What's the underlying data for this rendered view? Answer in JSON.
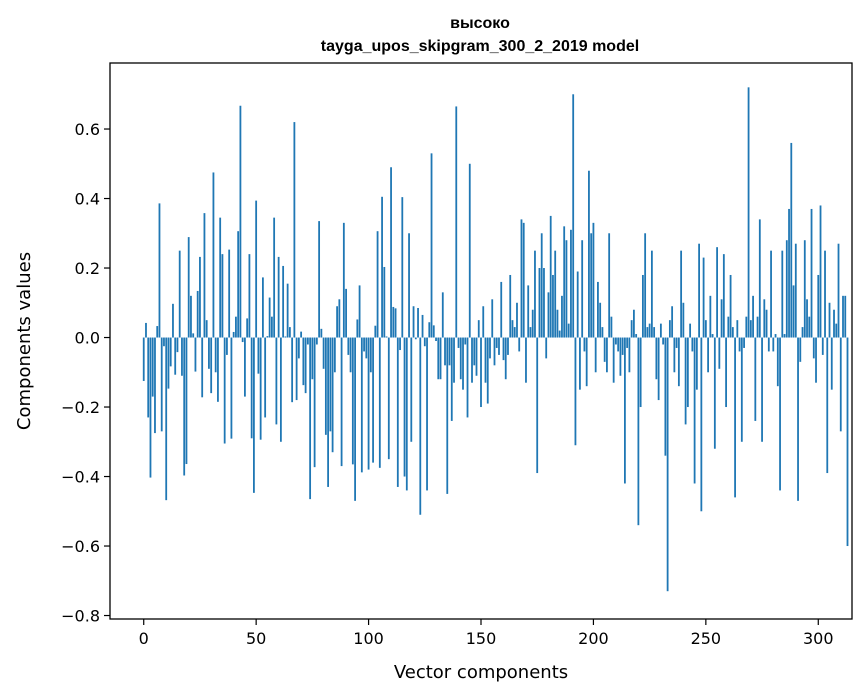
{
  "chart_data": {
    "type": "bar",
    "title_line1": "высоко",
    "title_line2": "tayga_upos_skipgram_300_2_2019 model",
    "xlabel": "Vector components",
    "ylabel": "Components values",
    "xlim": [
      -15,
      315
    ],
    "ylim": [
      -0.81,
      0.79
    ],
    "x_ticks": [
      0,
      50,
      100,
      150,
      200,
      250,
      300
    ],
    "x_tick_labels": [
      "0",
      "50",
      "100",
      "150",
      "200",
      "250",
      "300"
    ],
    "y_ticks": [
      -0.8,
      -0.6,
      -0.4,
      -0.2,
      0.0,
      0.2,
      0.4,
      0.6
    ],
    "y_tick_labels": [
      "−0.8",
      "−0.6",
      "−0.4",
      "−0.2",
      "0.0",
      "0.2",
      "0.4",
      "0.6"
    ],
    "bar_color": "#1f77b4",
    "values": [
      -0.125,
      0.042,
      -0.23,
      -0.403,
      -0.17,
      -0.275,
      0.033,
      0.386,
      -0.27,
      -0.025,
      -0.468,
      -0.147,
      -0.083,
      0.097,
      -0.107,
      -0.042,
      0.25,
      -0.11,
      -0.397,
      -0.364,
      0.289,
      0.12,
      0.012,
      -0.098,
      0.134,
      0.232,
      -0.172,
      0.358,
      0.05,
      -0.09,
      -0.16,
      0.475,
      -0.1,
      -0.185,
      0.345,
      0.24,
      -0.305,
      -0.05,
      0.253,
      -0.291,
      0.016,
      0.06,
      0.306,
      0.667,
      -0.013,
      -0.17,
      0.055,
      0.24,
      -0.29,
      -0.447,
      0.394,
      -0.104,
      -0.294,
      0.173,
      -0.23,
      0.004,
      0.115,
      0.06,
      0.345,
      -0.25,
      0.232,
      -0.3,
      0.206,
      0.003,
      0.155,
      0.03,
      -0.186,
      0.62,
      -0.18,
      -0.06,
      0.017,
      -0.137,
      -0.16,
      -0.02,
      -0.465,
      -0.12,
      -0.373,
      -0.02,
      0.335,
      0.025,
      -0.09,
      -0.28,
      -0.43,
      -0.27,
      -0.33,
      -0.1,
      0.09,
      0.11,
      -0.37,
      0.33,
      0.14,
      -0.05,
      -0.1,
      -0.365,
      -0.47,
      0.052,
      0.15,
      -0.388,
      -0.04,
      -0.06,
      -0.38,
      -0.1,
      -0.36,
      0.034,
      0.306,
      -0.375,
      0.405,
      0.203,
      0.003,
      -0.35,
      0.49,
      0.088,
      0.084,
      -0.43,
      -0.036,
      0.404,
      -0.4,
      -0.44,
      0.3,
      -0.3,
      0.09,
      -0.005,
      0.085,
      -0.51,
      0.065,
      -0.025,
      -0.44,
      0.044,
      0.53,
      0.035,
      -0.01,
      -0.12,
      -0.12,
      0.13,
      -0.08,
      -0.45,
      -0.08,
      -0.24,
      -0.13,
      0.665,
      -0.03,
      -0.12,
      -0.15,
      -0.02,
      -0.23,
      0.5,
      -0.13,
      -0.08,
      -0.11,
      0.05,
      -0.2,
      0.09,
      -0.13,
      -0.19,
      -0.06,
      0.11,
      -0.08,
      -0.03,
      -0.05,
      0.16,
      -0.065,
      -0.12,
      -0.05,
      0.18,
      0.05,
      0.03,
      0.1,
      -0.04,
      0.34,
      0.33,
      -0.13,
      0.15,
      0.03,
      0.08,
      0.25,
      -0.39,
      0.2,
      0.3,
      0.2,
      -0.06,
      0.13,
      0.35,
      0.18,
      0.25,
      0.08,
      0.02,
      0.12,
      0.32,
      0.28,
      0.04,
      0.31,
      0.7,
      -0.31,
      0.19,
      -0.15,
      0.28,
      -0.04,
      -0.14,
      0.48,
      0.3,
      0.33,
      -0.1,
      0.16,
      0.1,
      0.03,
      -0.07,
      -0.1,
      0.3,
      0.06,
      -0.13,
      -0.02,
      -0.04,
      -0.11,
      -0.05,
      -0.42,
      -0.03,
      -0.1,
      0.05,
      0.08,
      0.01,
      -0.54,
      -0.2,
      0.18,
      0.3,
      0.03,
      0.04,
      0.25,
      0.03,
      -0.12,
      -0.18,
      0.04,
      -0.02,
      -0.34,
      -0.73,
      0.05,
      0.09,
      -0.1,
      -0.03,
      -0.14,
      0.25,
      0.1,
      -0.25,
      -0.2,
      0.04,
      -0.04,
      -0.42,
      -0.15,
      0.27,
      -0.5,
      0.23,
      0.05,
      -0.1,
      0.12,
      0.01,
      -0.32,
      0.26,
      -0.09,
      0.11,
      0.24,
      -0.2,
      0.06,
      0.18,
      0.03,
      -0.46,
      0.05,
      -0.04,
      -0.3,
      -0.03,
      0.06,
      0.72,
      0.05,
      0.12,
      -0.24,
      0.06,
      0.34,
      -0.3,
      0.11,
      0.08,
      -0.04,
      0.25,
      -0.04,
      0.01,
      -0.14,
      -0.44,
      0.25,
      0.01,
      0.28,
      0.37,
      0.56,
      0.15,
      0.27,
      -0.47,
      -0.07,
      0.03,
      0.28,
      0.11,
      0.06,
      0.37,
      -0.06,
      -0.13,
      0.18,
      0.38,
      -0.05,
      0.25,
      -0.39,
      0.1,
      -0.15,
      0.08,
      0.04,
      0.27,
      -0.27,
      0.12,
      0.12,
      -0.6
    ]
  }
}
